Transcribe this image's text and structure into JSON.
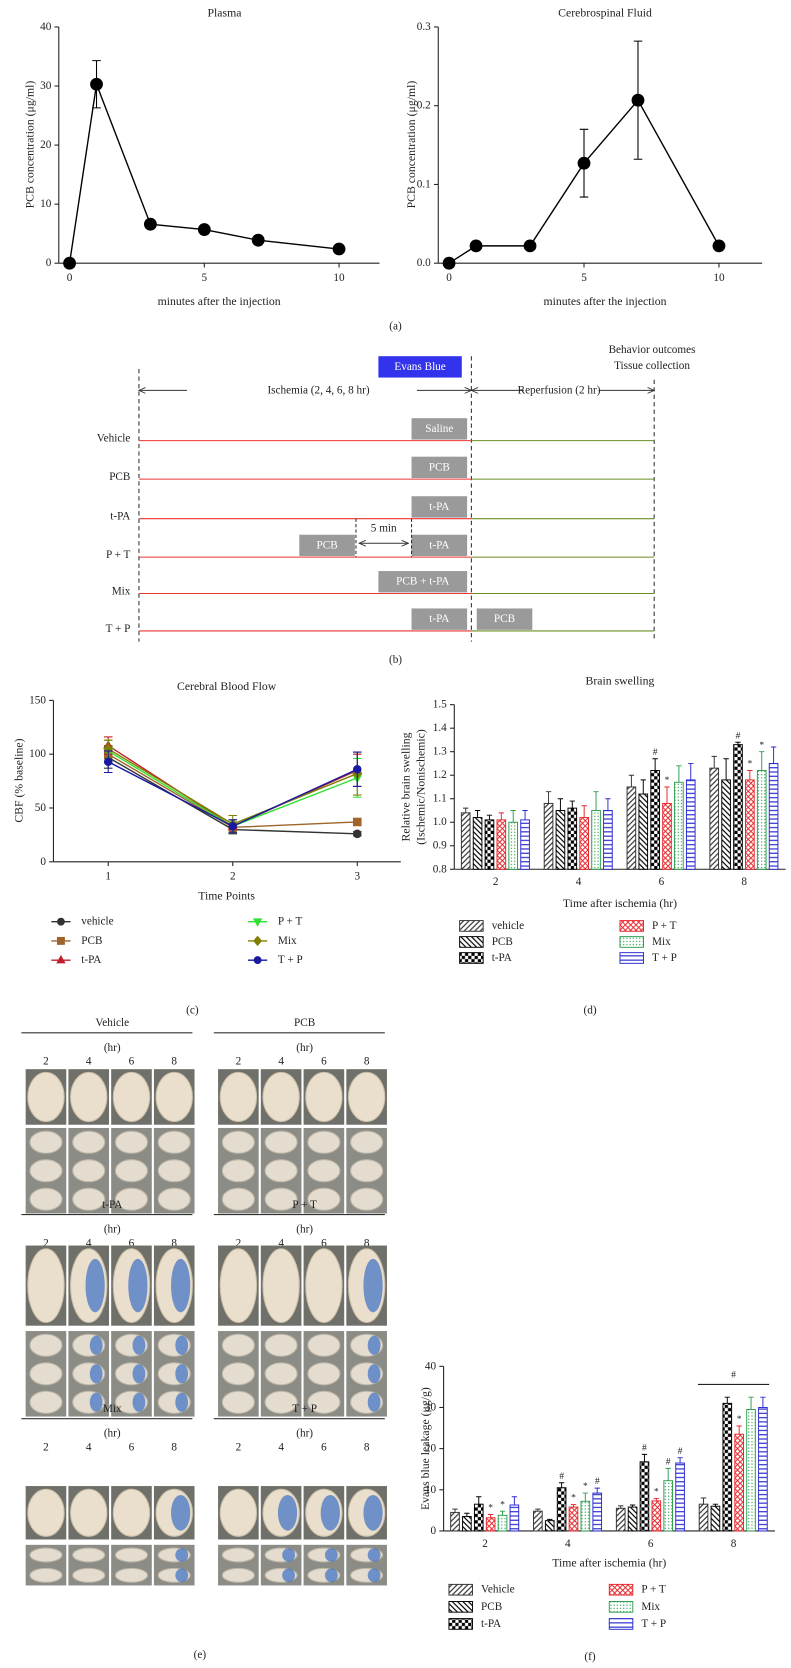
{
  "chart_data": [
    {
      "type": "line",
      "title": "Plasma",
      "x_label": "minutes after the injection",
      "y_label": "PCB concentration (μg/ml)",
      "x": [
        0,
        1,
        3,
        5,
        7,
        10
      ],
      "values": [
        0,
        30.3,
        6.6,
        5.7,
        3.9,
        2.4
      ],
      "errors": [
        null,
        4,
        null,
        null,
        null,
        null
      ],
      "color": "#000000",
      "marker": "circle",
      "xlim": [
        -0.4,
        11.5
      ],
      "xticks": [
        0,
        5,
        10
      ],
      "ylim": [
        0,
        40
      ],
      "yticks": [
        0,
        10,
        20,
        30,
        40
      ]
    },
    {
      "type": "line",
      "title": "Cerebrospinal Fluid",
      "x_label": "minutes after the injection",
      "y_label": "PCB concentration (μg/ml)",
      "x": [
        0,
        1,
        3,
        5,
        7,
        10
      ],
      "values": [
        0,
        0.022,
        0.022,
        0.127,
        0.207,
        0.022
      ],
      "errors": [
        null,
        null,
        null,
        0.043,
        0.075,
        null
      ],
      "color": "#000000",
      "marker": "circle",
      "xlim": [
        -0.4,
        11.6
      ],
      "xticks": [
        0,
        5,
        10
      ],
      "ylim": [
        0,
        0.3
      ],
      "yticks": [
        {
          "value": 0,
          "label": "0.0"
        },
        0.1,
        0.2,
        0.3
      ]
    },
    {
      "type": "line",
      "title": "Cerebral Blood Flow",
      "x_label": "Time Points",
      "y_label": "CBF (% baseline)",
      "x": [
        1,
        2,
        3
      ],
      "xlim": [
        0.56,
        3.35
      ],
      "xticks": [
        1,
        2,
        3
      ],
      "ylim": [
        0,
        150
      ],
      "yticks": [
        0,
        50,
        100,
        150
      ],
      "series": [
        {
          "name": "vehicle",
          "color": "#333333",
          "marker": "circle",
          "values": [
            97,
            30,
            26
          ],
          "errors": [
            10,
            4,
            2
          ]
        },
        {
          "name": "PCB",
          "color": "#a0642a",
          "marker": "square",
          "values": [
            100,
            32,
            37
          ],
          "errors": [
            8,
            5,
            3
          ]
        },
        {
          "name": "t-PA",
          "color": "#c0202a",
          "marker": "triangle",
          "values": [
            108,
            33,
            85
          ],
          "errors": [
            8,
            6,
            15
          ]
        },
        {
          "name": "P + T",
          "color": "#30e030",
          "marker": "triangle-down",
          "values": [
            103,
            33,
            78
          ],
          "errors": [
            10,
            6,
            18
          ]
        },
        {
          "name": "Mix",
          "color": "#808000",
          "marker": "diamond",
          "values": [
            105,
            35,
            82
          ],
          "errors": [
            8,
            8,
            20
          ]
        },
        {
          "name": "T + P",
          "color": "#1a1aa0",
          "marker": "circle",
          "values": [
            93,
            33,
            86
          ],
          "errors": [
            10,
            6,
            16
          ]
        }
      ]
    },
    {
      "type": "bar",
      "title": "Brain swelling",
      "x_label": "Time after ischemia (hr)",
      "y_label": [
        "Relative brain swelling",
        "(Ischemic/Nonischemic)"
      ],
      "categories": [
        "2",
        "4",
        "6",
        "8"
      ],
      "ylim": [
        0.8,
        1.5
      ],
      "yticks": [
        0.8,
        0.9,
        {
          "value": 1,
          "label": "1.0"
        },
        1.1,
        1.2,
        1.3,
        1.4,
        1.5
      ],
      "series": [
        {
          "name": "vehicle",
          "color": "#333333",
          "pattern": "diagonal",
          "values": [
            1.04,
            1.08,
            1.15,
            1.23
          ],
          "errors": [
            0.02,
            0.05,
            0.05,
            0.05
          ]
        },
        {
          "name": "PCB",
          "color": "#000000",
          "pattern": "back-diagonal",
          "values": [
            1.02,
            1.05,
            1.12,
            1.18
          ],
          "errors": [
            0.03,
            0.05,
            0.06,
            0.09
          ]
        },
        {
          "name": "t-PA",
          "color": "#000000",
          "pattern": "checker",
          "values": [
            1.01,
            1.06,
            1.22,
            1.33
          ],
          "errors": [
            0.02,
            0.03,
            0.05,
            0.01
          ],
          "annotations": [
            null,
            null,
            "#",
            "#"
          ]
        },
        {
          "name": "P + T",
          "color": "#e8262b",
          "pattern": "crosshatch",
          "values": [
            1.01,
            1.02,
            1.08,
            1.18
          ],
          "errors": [
            0.03,
            0.05,
            0.07,
            0.04
          ],
          "annotations": [
            null,
            null,
            "*",
            "*"
          ]
        },
        {
          "name": "Mix",
          "color": "#2e9e4f",
          "pattern": "dots",
          "values": [
            1.0,
            1.05,
            1.17,
            1.22
          ],
          "errors": [
            0.05,
            0.08,
            0.07,
            0.08
          ],
          "annotations": [
            null,
            null,
            null,
            "*"
          ]
        },
        {
          "name": "T + P",
          "color": "#2a2ad0",
          "pattern": "horizontal",
          "values": [
            1.01,
            1.05,
            1.18,
            1.25
          ],
          "errors": [
            0.04,
            0.05,
            0.07,
            0.07
          ]
        }
      ]
    },
    {
      "type": "bar",
      "x_label": "Time after ischemia (hr)",
      "y_label": "Evans blue leakage (μg/g)",
      "categories": [
        "2",
        "4",
        "6",
        "8"
      ],
      "ylim": [
        0,
        40
      ],
      "yticks": [
        0,
        10,
        20,
        30,
        40
      ],
      "bracket_label": "#",
      "series": [
        {
          "name": "Vehicle",
          "color": "#333333",
          "pattern": "diagonal",
          "values": [
            4.5,
            4.8,
            5.5,
            6.5
          ],
          "errors": [
            0.8,
            0.5,
            0.6,
            1.5
          ]
        },
        {
          "name": "PCB",
          "color": "#000000",
          "pattern": "back-diagonal",
          "values": [
            3.5,
            2.5,
            5.8,
            6.0
          ],
          "errors": [
            0.8,
            0.3,
            0.5,
            0.5
          ]
        },
        {
          "name": "t-PA",
          "color": "#000000",
          "pattern": "checker",
          "values": [
            6.5,
            10.5,
            16.8,
            31
          ],
          "errors": [
            1.8,
            1.2,
            1.8,
            1.5
          ],
          "annotations": [
            null,
            "#",
            "#",
            null
          ]
        },
        {
          "name": "P + T",
          "color": "#e8262b",
          "pattern": "crosshatch",
          "values": [
            3.2,
            5.8,
            7.3,
            23.5
          ],
          "errors": [
            0.8,
            0.6,
            0.6,
            2
          ],
          "annotations": [
            "*",
            "*",
            "*",
            "*"
          ]
        },
        {
          "name": "Mix",
          "color": "#2e9e4f",
          "pattern": "dots",
          "values": [
            3.8,
            7.2,
            12.2,
            29.5
          ],
          "errors": [
            1,
            2,
            3,
            3
          ],
          "annotations": [
            "*",
            "*",
            "#",
            null
          ]
        },
        {
          "name": "T + P",
          "color": "#2a2ad0",
          "pattern": "horizontal",
          "values": [
            6.3,
            9.2,
            16.5,
            30
          ],
          "errors": [
            2,
            1.2,
            1.3,
            2.5
          ],
          "annotations": [
            null,
            "#",
            "#",
            null
          ]
        }
      ]
    }
  ],
  "timeline": {
    "evans_blue": "Evans Blue",
    "outcome": [
      "Behavior outcomes",
      "Tissue collection"
    ],
    "ischemia": "Ischemia (2, 4, 6, 8 hr)",
    "reperfusion": "Reperfusion (2 hr)",
    "interval": "5 min",
    "rows": [
      {
        "label": "Vehicle",
        "boxes": [
          "Saline"
        ]
      },
      {
        "label": "PCB",
        "boxes": [
          "PCB"
        ]
      },
      {
        "label": "t-PA",
        "boxes": [
          "t-PA"
        ]
      },
      {
        "label": "P + T",
        "boxes": [
          "PCB",
          "t-PA"
        ]
      },
      {
        "label": "Mix",
        "boxes": [
          "PCB + t-PA"
        ]
      },
      {
        "label": "T + P",
        "boxes": [
          "t-PA",
          "PCB"
        ]
      }
    ]
  },
  "brain_images": {
    "groups": [
      {
        "name": "Vehicle",
        "unit": "(hr)",
        "hours": [
          "2",
          "4",
          "6",
          "8"
        ]
      },
      {
        "name": "PCB",
        "unit": "(hr)",
        "hours": [
          "2",
          "4",
          "6",
          "8"
        ]
      },
      {
        "name": "t-PA",
        "unit": "(hr)",
        "hours": [
          "2",
          "4",
          "6",
          "8"
        ]
      },
      {
        "name": "P + T",
        "unit": "(hr)",
        "hours": [
          "2",
          "4",
          "6",
          "8"
        ]
      },
      {
        "name": "Mix",
        "unit": "(hr)",
        "hours": [
          "2",
          "4",
          "6",
          "8"
        ]
      },
      {
        "name": "T + P",
        "unit": "(hr)",
        "hours": [
          "2",
          "4",
          "6",
          "8"
        ]
      }
    ]
  },
  "panel_labels": [
    "(a)",
    "(b)",
    "(c)",
    "(d)",
    "(e)",
    "(f)"
  ]
}
